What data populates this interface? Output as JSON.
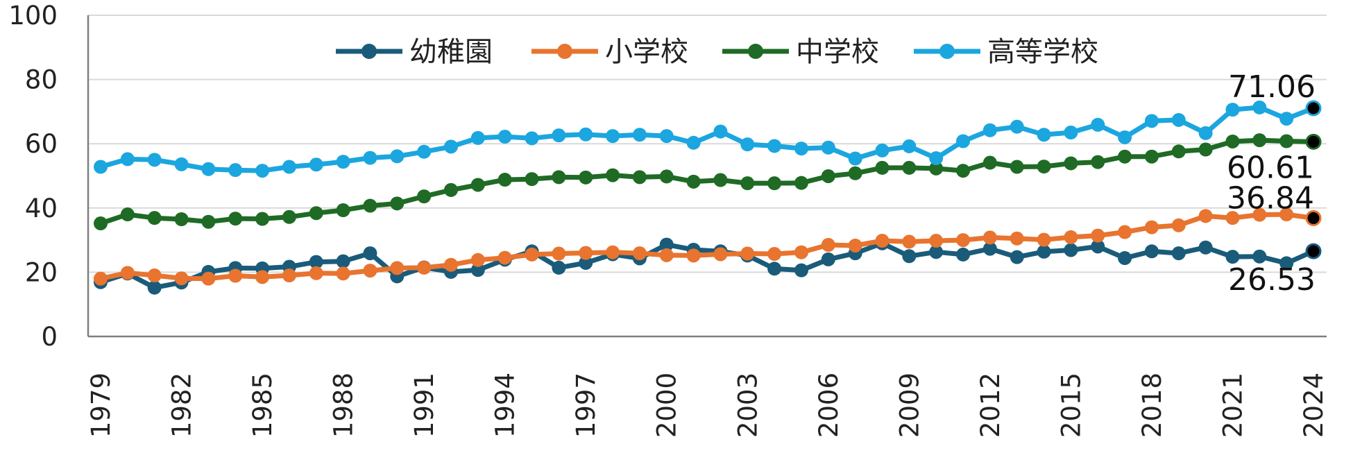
{
  "chart_data": {
    "type": "line",
    "title": "",
    "xlabel": "",
    "ylabel": "",
    "ylim": [
      0,
      100
    ],
    "yticks": [
      "0",
      "20",
      "40",
      "60",
      "80",
      "100"
    ],
    "x": [
      1979,
      1980,
      1981,
      1982,
      1983,
      1984,
      1985,
      1986,
      1987,
      1988,
      1989,
      1990,
      1991,
      1992,
      1993,
      1994,
      1995,
      1996,
      1997,
      1998,
      1999,
      2000,
      2001,
      2002,
      2003,
      2004,
      2005,
      2006,
      2007,
      2008,
      2009,
      2010,
      2011,
      2012,
      2013,
      2014,
      2015,
      2016,
      2017,
      2018,
      2019,
      2020,
      2021,
      2022,
      2023,
      2024
    ],
    "xtick_labels": [
      "1979",
      "1982",
      "1985",
      "1988",
      "1991",
      "1994",
      "1997",
      "2000",
      "2003",
      "2006",
      "2009",
      "2012",
      "2015",
      "2018",
      "2021",
      "2024"
    ],
    "legend_position": "top",
    "series": [
      {
        "name": "幼稚園",
        "color": "#1a5b7a",
        "values": [
          16.9,
          19.6,
          15.2,
          16.8,
          20.1,
          21.3,
          21.2,
          21.7,
          23.2,
          23.4,
          25.9,
          18.7,
          21.5,
          20.1,
          20.7,
          23.9,
          26.5,
          21.4,
          22.9,
          25.6,
          24.3,
          28.6,
          27.0,
          26.5,
          25.2,
          21.1,
          20.6,
          24.0,
          25.9,
          29.0,
          25.0,
          26.3,
          25.5,
          27.3,
          24.7,
          26.4,
          26.9,
          28.0,
          24.4,
          26.5,
          25.9,
          27.7,
          24.8,
          24.9,
          22.8,
          26.53
        ],
        "end_label": "26.53"
      },
      {
        "name": "小学校",
        "color": "#e8742f",
        "values": [
          18.0,
          19.8,
          19.0,
          18.1,
          18.0,
          18.9,
          18.5,
          19.0,
          19.7,
          19.6,
          20.5,
          21.3,
          21.4,
          22.3,
          23.8,
          24.5,
          25.5,
          25.8,
          26.0,
          26.2,
          25.9,
          25.3,
          25.2,
          25.6,
          25.8,
          25.7,
          26.2,
          28.5,
          28.3,
          29.8,
          29.5,
          29.8,
          30.0,
          30.8,
          30.5,
          30.1,
          30.9,
          31.4,
          32.5,
          34.0,
          34.6,
          37.5,
          36.9,
          37.9,
          38.0,
          36.84
        ],
        "end_label": "36.84"
      },
      {
        "name": "中学校",
        "color": "#1f6b25",
        "values": [
          35.2,
          38.0,
          36.9,
          36.5,
          35.7,
          36.7,
          36.6,
          37.2,
          38.4,
          39.3,
          40.7,
          41.4,
          43.6,
          45.6,
          47.2,
          48.8,
          49.0,
          49.6,
          49.5,
          50.2,
          49.6,
          49.8,
          48.2,
          48.7,
          47.7,
          47.7,
          47.8,
          49.9,
          50.8,
          52.5,
          52.5,
          52.3,
          51.6,
          54.1,
          52.8,
          52.9,
          53.9,
          54.3,
          56.0,
          56.0,
          57.6,
          58.2,
          60.7,
          61.1,
          60.8,
          60.61
        ],
        "end_label": "60.61"
      },
      {
        "name": "高等学校",
        "color": "#1ba6df",
        "values": [
          52.8,
          55.2,
          55.0,
          53.6,
          52.1,
          51.8,
          51.6,
          52.8,
          53.5,
          54.4,
          55.6,
          56.1,
          57.5,
          59.1,
          61.8,
          62.2,
          61.7,
          62.6,
          62.9,
          62.4,
          62.8,
          62.4,
          60.3,
          63.8,
          59.8,
          59.3,
          58.5,
          58.8,
          55.4,
          57.9,
          59.2,
          55.5,
          60.8,
          64.2,
          65.3,
          62.8,
          63.5,
          65.9,
          62.0,
          67.1,
          67.4,
          63.3,
          70.6,
          71.3,
          67.8,
          71.06
        ],
        "end_label": "71.06"
      }
    ]
  }
}
